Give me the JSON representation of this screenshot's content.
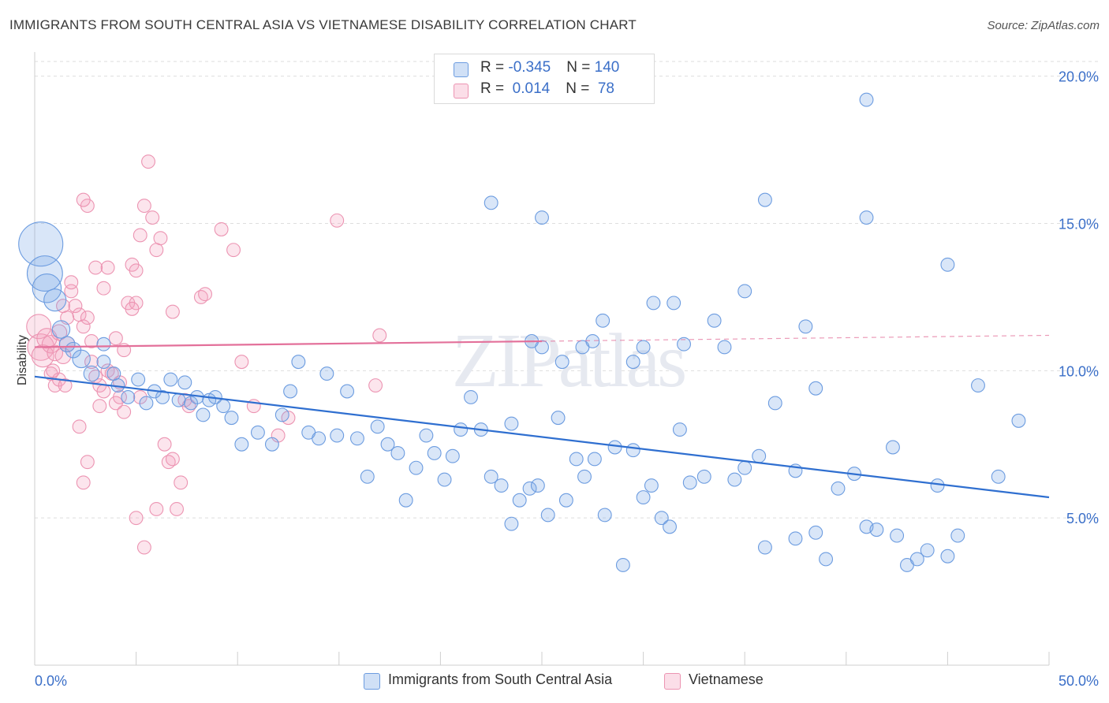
{
  "title": "IMMIGRANTS FROM SOUTH CENTRAL ASIA VS VIETNAMESE DISABILITY CORRELATION CHART",
  "source": "Source: ZipAtlas.com",
  "watermark": "ZIPatlas",
  "legend": {
    "rows": [
      {
        "r_label": "R = ",
        "r_value": "-0.345",
        "n_label": "N = ",
        "n_value": "140",
        "color": "#8fb4ea"
      },
      {
        "r_label": "R = ",
        "r_value": " 0.014",
        "n_label": "N = ",
        "n_value": " 78",
        "color": "#f4a9c0"
      }
    ]
  },
  "bottom_legend": {
    "blue_label": "Immigrants from South Central Asia",
    "pink_label": "Vietnamese"
  },
  "colors": {
    "blue_fill": "rgba(120,166,230,0.28)",
    "blue_stroke": "#6c9ce0",
    "blue_line": "#2f6fd0",
    "pink_fill": "rgba(244,160,190,0.28)",
    "pink_stroke": "#ec94b2",
    "pink_line": "#e3709a",
    "tick_label": "#3b6fc8",
    "grid": "#dedede"
  },
  "chart_data": {
    "type": "scatter",
    "title": "IMMIGRANTS FROM SOUTH CENTRAL ASIA VS VIETNAMESE DISABILITY CORRELATION CHART",
    "xlabel": "",
    "ylabel": "Disability",
    "xlim": [
      0,
      50
    ],
    "ylim": [
      0,
      20.5
    ],
    "x_tick_labels": [
      "0.0%",
      "50.0%"
    ],
    "y_ticks": [
      5,
      10,
      15,
      20
    ],
    "y_tick_labels": [
      "5.0%",
      "10.0%",
      "15.0%",
      "20.0%"
    ],
    "grid": true,
    "legend_position": "top-center",
    "series": [
      {
        "name": "Immigrants from South Central Asia",
        "R": -0.345,
        "N": 140,
        "trend": {
          "x": [
            0,
            50
          ],
          "y": [
            9.8,
            5.7
          ]
        },
        "points": [
          [
            0.3,
            14.3,
            2.0
          ],
          [
            0.5,
            13.3,
            1.6
          ],
          [
            0.6,
            12.8,
            1.3
          ],
          [
            1.0,
            12.4,
            1.0
          ],
          [
            1.3,
            11.4,
            0.8
          ],
          [
            1.6,
            10.9,
            0.7
          ],
          [
            1.9,
            10.7,
            0.7
          ],
          [
            2.3,
            10.4,
            0.8
          ],
          [
            2.8,
            9.9,
            0.7
          ],
          [
            3.4,
            10.3,
            0.6
          ],
          [
            3.9,
            9.9,
            0.6
          ],
          [
            3.4,
            10.9,
            0.6
          ],
          [
            4.1,
            9.5,
            0.6
          ],
          [
            4.6,
            9.1,
            0.6
          ],
          [
            5.1,
            9.7,
            0.6
          ],
          [
            5.5,
            8.9,
            0.6
          ],
          [
            5.9,
            9.3,
            0.6
          ],
          [
            6.3,
            9.1,
            0.6
          ],
          [
            6.7,
            9.7,
            0.6
          ],
          [
            7.1,
            9.0,
            0.6
          ],
          [
            7.4,
            9.6,
            0.6
          ],
          [
            7.7,
            8.9,
            0.6
          ],
          [
            8.0,
            9.1,
            0.6
          ],
          [
            8.3,
            8.5,
            0.6
          ],
          [
            8.6,
            9.0,
            0.6
          ],
          [
            8.9,
            9.1,
            0.6
          ],
          [
            9.3,
            8.8,
            0.6
          ],
          [
            9.7,
            8.4,
            0.6
          ],
          [
            10.2,
            7.5,
            0.6
          ],
          [
            11.0,
            7.9,
            0.6
          ],
          [
            11.7,
            7.5,
            0.6
          ],
          [
            12.2,
            8.5,
            0.6
          ],
          [
            12.6,
            9.3,
            0.6
          ],
          [
            13.0,
            10.3,
            0.6
          ],
          [
            13.5,
            7.9,
            0.6
          ],
          [
            14.0,
            7.7,
            0.6
          ],
          [
            14.4,
            9.9,
            0.6
          ],
          [
            14.9,
            7.8,
            0.6
          ],
          [
            15.4,
            9.3,
            0.6
          ],
          [
            15.9,
            7.7,
            0.6
          ],
          [
            16.4,
            6.4,
            0.6
          ],
          [
            16.9,
            8.1,
            0.6
          ],
          [
            17.4,
            7.5,
            0.6
          ],
          [
            17.9,
            7.2,
            0.6
          ],
          [
            18.3,
            5.6,
            0.6
          ],
          [
            18.8,
            6.7,
            0.6
          ],
          [
            19.3,
            7.8,
            0.6
          ],
          [
            19.7,
            7.2,
            0.6
          ],
          [
            20.2,
            6.3,
            0.6
          ],
          [
            20.6,
            7.1,
            0.6
          ],
          [
            21.0,
            8.0,
            0.6
          ],
          [
            21.5,
            9.1,
            0.6
          ],
          [
            22.0,
            8.0,
            0.6
          ],
          [
            22.5,
            6.4,
            0.6
          ],
          [
            23.0,
            6.1,
            0.6
          ],
          [
            23.5,
            4.8,
            0.6
          ],
          [
            23.9,
            5.6,
            0.6
          ],
          [
            24.4,
            6.0,
            0.6
          ],
          [
            24.8,
            6.1,
            0.6
          ],
          [
            25.3,
            5.1,
            0.6
          ],
          [
            25.8,
            8.4,
            0.6
          ],
          [
            26.2,
            5.6,
            0.6
          ],
          [
            26.7,
            7.0,
            0.6
          ],
          [
            27.1,
            6.4,
            0.6
          ],
          [
            27.6,
            7.0,
            0.6
          ],
          [
            28.1,
            5.1,
            0.6
          ],
          [
            28.6,
            7.4,
            0.6
          ],
          [
            29.0,
            3.4,
            0.6
          ],
          [
            29.5,
            7.3,
            0.6
          ],
          [
            30.0,
            5.7,
            0.6
          ],
          [
            30.4,
            6.1,
            0.6
          ],
          [
            30.9,
            5.0,
            0.6
          ],
          [
            31.3,
            4.7,
            0.6
          ],
          [
            31.8,
            8.0,
            0.6
          ],
          [
            32.3,
            6.2,
            0.6
          ],
          [
            33.0,
            6.4,
            0.6
          ],
          [
            34.0,
            10.8,
            0.6
          ],
          [
            34.5,
            6.3,
            0.6
          ],
          [
            35.0,
            6.7,
            0.6
          ],
          [
            35.7,
            7.1,
            0.6
          ],
          [
            36.5,
            8.9,
            0.6
          ],
          [
            37.5,
            6.6,
            0.6
          ],
          [
            38.5,
            9.4,
            0.6
          ],
          [
            39.0,
            3.6,
            0.6
          ],
          [
            39.6,
            6.0,
            0.6
          ],
          [
            40.4,
            6.5,
            0.6
          ],
          [
            41.0,
            4.7,
            0.6
          ],
          [
            42.3,
            7.4,
            0.6
          ],
          [
            43.0,
            3.4,
            0.6
          ],
          [
            44.0,
            3.9,
            0.6
          ],
          [
            44.5,
            6.1,
            0.6
          ],
          [
            45.0,
            3.7,
            0.6
          ],
          [
            45.5,
            4.4,
            0.6
          ],
          [
            46.5,
            9.5,
            0.6
          ],
          [
            47.5,
            6.4,
            0.6
          ],
          [
            48.5,
            8.3,
            0.6
          ],
          [
            30.0,
            10.8,
            0.6
          ],
          [
            32.0,
            10.9,
            0.6
          ],
          [
            25.0,
            15.2,
            0.6
          ],
          [
            27.0,
            10.8,
            0.6
          ],
          [
            29.5,
            10.3,
            0.6
          ],
          [
            23.5,
            8.2,
            0.6
          ],
          [
            22.5,
            15.7,
            0.6
          ],
          [
            37.5,
            4.3,
            0.6
          ],
          [
            38.5,
            4.5,
            0.6
          ],
          [
            43.5,
            3.6,
            0.6
          ],
          [
            41.5,
            4.6,
            0.6
          ],
          [
            42.5,
            4.4,
            0.6
          ],
          [
            36.0,
            4.0,
            0.6
          ],
          [
            35.0,
            12.7,
            0.6
          ],
          [
            41.0,
            15.2,
            0.6
          ],
          [
            45.0,
            13.6,
            0.6
          ],
          [
            41.0,
            19.2,
            0.6
          ],
          [
            36.0,
            15.8,
            0.6
          ],
          [
            38.0,
            11.5,
            0.6
          ],
          [
            33.5,
            11.7,
            0.6
          ],
          [
            31.5,
            12.3,
            0.6
          ],
          [
            30.5,
            12.3,
            0.6
          ],
          [
            28.0,
            11.7,
            0.6
          ],
          [
            27.5,
            11.0,
            0.6
          ],
          [
            26.0,
            10.3,
            0.6
          ],
          [
            25.0,
            10.8,
            0.6
          ],
          [
            24.5,
            11.0,
            0.6
          ]
        ]
      },
      {
        "name": "Vietnamese",
        "R": 0.014,
        "N": 78,
        "trend": {
          "x": [
            0,
            25
          ],
          "y": [
            10.8,
            11.0
          ]
        },
        "trend_extension": {
          "x": [
            25,
            50
          ],
          "y": [
            11.0,
            11.2
          ]
        },
        "points": [
          [
            0.2,
            11.5,
            1.1
          ],
          [
            0.3,
            10.8,
            1.2
          ],
          [
            0.4,
            10.5,
            1.0
          ],
          [
            0.6,
            11.1,
            0.9
          ],
          [
            0.8,
            10.9,
            0.8
          ],
          [
            1.0,
            10.6,
            0.7
          ],
          [
            1.2,
            11.3,
            0.7
          ],
          [
            1.4,
            10.5,
            0.7
          ],
          [
            1.6,
            10.9,
            0.7
          ],
          [
            1.8,
            12.7,
            0.6
          ],
          [
            2.0,
            12.2,
            0.6
          ],
          [
            2.2,
            11.9,
            0.6
          ],
          [
            2.4,
            11.5,
            0.6
          ],
          [
            2.6,
            11.8,
            0.6
          ],
          [
            2.8,
            10.3,
            0.6
          ],
          [
            3.0,
            9.8,
            0.6
          ],
          [
            3.2,
            9.5,
            0.6
          ],
          [
            3.4,
            9.3,
            0.6
          ],
          [
            3.6,
            10.0,
            0.6
          ],
          [
            3.8,
            9.9,
            0.6
          ],
          [
            4.0,
            8.9,
            0.6
          ],
          [
            4.2,
            9.6,
            0.6
          ],
          [
            4.4,
            8.6,
            0.6
          ],
          [
            4.6,
            12.3,
            0.6
          ],
          [
            4.8,
            13.6,
            0.6
          ],
          [
            5.0,
            13.4,
            0.6
          ],
          [
            5.2,
            14.6,
            0.6
          ],
          [
            5.4,
            15.6,
            0.6
          ],
          [
            5.6,
            17.1,
            0.6
          ],
          [
            5.8,
            15.2,
            0.6
          ],
          [
            6.0,
            14.1,
            0.6
          ],
          [
            6.2,
            14.5,
            0.6
          ],
          [
            6.4,
            7.5,
            0.6
          ],
          [
            6.6,
            6.9,
            0.6
          ],
          [
            6.8,
            7.0,
            0.6
          ],
          [
            7.0,
            5.3,
            0.6
          ],
          [
            7.2,
            6.2,
            0.6
          ],
          [
            7.4,
            9.0,
            0.6
          ],
          [
            7.6,
            8.8,
            0.6
          ],
          [
            3.0,
            13.5,
            0.6
          ],
          [
            3.4,
            12.8,
            0.6
          ],
          [
            3.6,
            13.5,
            0.6
          ],
          [
            2.6,
            15.6,
            0.6
          ],
          [
            2.4,
            15.8,
            0.6
          ],
          [
            1.8,
            13.0,
            0.6
          ],
          [
            1.4,
            12.2,
            0.6
          ],
          [
            1.6,
            11.8,
            0.6
          ],
          [
            0.8,
            9.9,
            0.6
          ],
          [
            1.0,
            9.5,
            0.6
          ],
          [
            1.2,
            9.7,
            0.6
          ],
          [
            2.2,
            8.1,
            0.6
          ],
          [
            2.6,
            6.9,
            0.6
          ],
          [
            2.4,
            6.2,
            0.6
          ],
          [
            3.2,
            8.8,
            0.6
          ],
          [
            4.2,
            9.1,
            0.6
          ],
          [
            5.2,
            9.1,
            0.6
          ],
          [
            5.4,
            4.0,
            0.6
          ],
          [
            5.0,
            5.0,
            0.6
          ],
          [
            6.0,
            5.3,
            0.6
          ],
          [
            4.0,
            11.1,
            0.6
          ],
          [
            4.4,
            10.7,
            0.6
          ],
          [
            5.0,
            12.3,
            0.6
          ],
          [
            9.2,
            14.8,
            0.6
          ],
          [
            9.8,
            14.1,
            0.6
          ],
          [
            10.2,
            10.3,
            0.6
          ],
          [
            10.8,
            8.8,
            0.6
          ],
          [
            12.5,
            8.4,
            0.6
          ],
          [
            12.0,
            7.8,
            0.6
          ],
          [
            8.2,
            12.5,
            0.6
          ],
          [
            8.4,
            12.6,
            0.6
          ],
          [
            14.9,
            15.1,
            0.6
          ],
          [
            17.0,
            11.2,
            0.6
          ],
          [
            16.8,
            9.5,
            0.6
          ],
          [
            4.8,
            12.1,
            0.6
          ],
          [
            6.8,
            12.0,
            0.6
          ],
          [
            2.8,
            11.0,
            0.6
          ],
          [
            1.5,
            9.5,
            0.6
          ],
          [
            0.9,
            10.0,
            0.6
          ]
        ]
      }
    ]
  }
}
